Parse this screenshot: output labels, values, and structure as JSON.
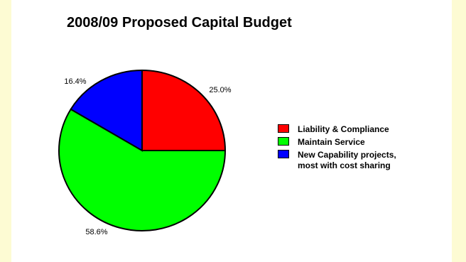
{
  "chart_data": {
    "type": "pie",
    "title": "2008/09 Proposed Capital Budget",
    "slices": [
      {
        "label": "Liability & Compliance",
        "value": 25.0,
        "label_text": "25.0%",
        "color": "#ff0000"
      },
      {
        "label": "Maintain Service",
        "value": 58.6,
        "label_text": "58.6%",
        "color": "#00ff00"
      },
      {
        "label": "New Capability projects, most with cost sharing",
        "value": 16.4,
        "label_text": "16.4%",
        "color": "#0000ff"
      }
    ],
    "legend_position": "right",
    "legend": [
      {
        "lines": [
          "Liability & Compliance"
        ]
      },
      {
        "lines": [
          "Maintain Service"
        ]
      },
      {
        "lines": [
          "New Capability projects,",
          "most with cost sharing"
        ]
      }
    ]
  }
}
